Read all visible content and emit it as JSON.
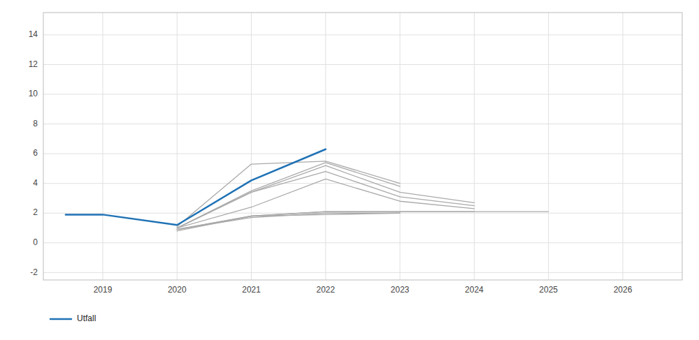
{
  "chart_data": {
    "type": "line",
    "series": [
      {
        "x": [
          2020,
          2021,
          2022,
          2023
        ],
        "values": [
          0.8,
          1.8,
          1.9,
          2.0
        ],
        "color": "#AAAAAA"
      },
      {
        "x": [
          2020,
          2021,
          2022,
          2023
        ],
        "values": [
          0.9,
          1.7,
          2.0,
          2.0
        ],
        "color": "#AAAAAA"
      },
      {
        "x": [
          2020,
          2021,
          2022,
          2023,
          2024
        ],
        "values": [
          0.9,
          1.8,
          2.1,
          2.1,
          2.1
        ],
        "color": "#AAAAAA"
      },
      {
        "x": [
          2020,
          2021,
          2022,
          2023,
          2024,
          2025
        ],
        "values": [
          0.9,
          1.8,
          2.1,
          2.1,
          2.1,
          2.1
        ],
        "color": "#AAAAAA"
      },
      {
        "x": [
          2020,
          2021,
          2022,
          2023,
          2024
        ],
        "values": [
          1.0,
          2.4,
          4.3,
          2.8,
          2.3
        ],
        "color": "#AAAAAA"
      },
      {
        "x": [
          2020,
          2021,
          2022,
          2023,
          2024
        ],
        "values": [
          1.0,
          3.4,
          4.8,
          3.1,
          2.5
        ],
        "color": "#AAAAAA"
      },
      {
        "x": [
          2020,
          2021,
          2022,
          2023,
          2024
        ],
        "values": [
          1.0,
          3.4,
          5.2,
          3.4,
          2.7
        ],
        "color": "#AAAAAA"
      },
      {
        "x": [
          2020,
          2021,
          2022,
          2023
        ],
        "values": [
          1.0,
          3.5,
          5.4,
          3.8
        ],
        "color": "#AAAAAA"
      },
      {
        "x": [
          2020,
          2021,
          2022,
          2023
        ],
        "values": [
          1.1,
          5.3,
          5.5,
          4.0
        ],
        "color": "#AAAAAA"
      },
      {
        "name": "Utfall",
        "x": [
          2018.5,
          2019,
          2020,
          2021,
          2022
        ],
        "values": [
          1.9,
          1.9,
          1.2,
          4.2,
          6.3
        ],
        "color": "#1F72B5"
      }
    ],
    "xlim": [
      2018.2,
      2026.8
    ],
    "xticks": [
      2019,
      2020,
      2021,
      2022,
      2023,
      2024,
      2025,
      2026
    ],
    "ylim": [
      -2.5,
      15.5
    ],
    "yticks": [
      -2,
      0,
      2,
      4,
      6,
      8,
      10,
      12,
      14
    ],
    "grid": true,
    "legend": "bottom"
  }
}
